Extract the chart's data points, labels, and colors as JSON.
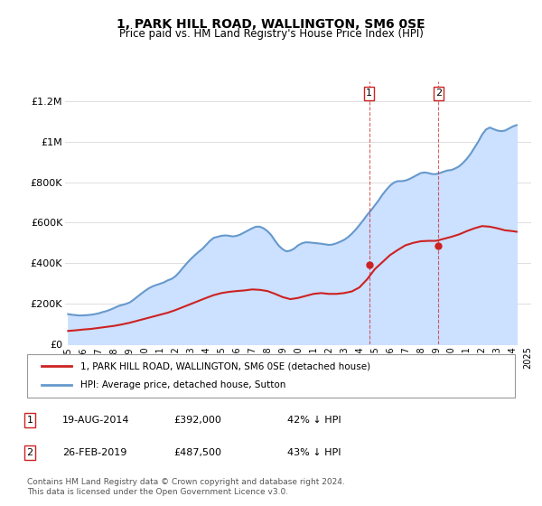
{
  "title": "1, PARK HILL ROAD, WALLINGTON, SM6 0SE",
  "subtitle": "Price paid vs. HM Land Registry's House Price Index (HPI)",
  "xlabel": "",
  "ylabel": "",
  "ylim": [
    0,
    1300000
  ],
  "yticks": [
    0,
    200000,
    400000,
    600000,
    800000,
    1000000,
    1200000
  ],
  "ytick_labels": [
    "£0",
    "£200K",
    "£400K",
    "£600K",
    "£800K",
    "£1M",
    "£1.2M"
  ],
  "background_color": "#ffffff",
  "plot_bg_color": "#ffffff",
  "grid_color": "#dddddd",
  "hpi_color": "#6699cc",
  "hpi_fill_color": "#cce0ff",
  "price_color": "#cc2222",
  "marker1_year": 2014.64,
  "marker2_year": 2019.16,
  "marker1_price": 392000,
  "marker2_price": 487500,
  "marker1_label": "1",
  "marker2_label": "2",
  "legend1_label": "1, PARK HILL ROAD, WALLINGTON, SM6 0SE (detached house)",
  "legend2_label": "HPI: Average price, detached house, Sutton",
  "table_rows": [
    {
      "num": "1",
      "date": "19-AUG-2014",
      "price": "£392,000",
      "hpi": "42% ↓ HPI"
    },
    {
      "num": "2",
      "date": "26-FEB-2019",
      "price": "£487,500",
      "hpi": "43% ↓ HPI"
    }
  ],
  "footer": "Contains HM Land Registry data © Crown copyright and database right 2024.\nThis data is licensed under the Open Government Licence v3.0.",
  "hpi_x": [
    1995.0,
    1995.25,
    1995.5,
    1995.75,
    1996.0,
    1996.25,
    1996.5,
    1996.75,
    1997.0,
    1997.25,
    1997.5,
    1997.75,
    1998.0,
    1998.25,
    1998.5,
    1998.75,
    1999.0,
    1999.25,
    1999.5,
    1999.75,
    2000.0,
    2000.25,
    2000.5,
    2000.75,
    2001.0,
    2001.25,
    2001.5,
    2001.75,
    2002.0,
    2002.25,
    2002.5,
    2002.75,
    2003.0,
    2003.25,
    2003.5,
    2003.75,
    2004.0,
    2004.25,
    2004.5,
    2004.75,
    2005.0,
    2005.25,
    2005.5,
    2005.75,
    2006.0,
    2006.25,
    2006.5,
    2006.75,
    2007.0,
    2007.25,
    2007.5,
    2007.75,
    2008.0,
    2008.25,
    2008.5,
    2008.75,
    2009.0,
    2009.25,
    2009.5,
    2009.75,
    2010.0,
    2010.25,
    2010.5,
    2010.75,
    2011.0,
    2011.25,
    2011.5,
    2011.75,
    2012.0,
    2012.25,
    2012.5,
    2012.75,
    2013.0,
    2013.25,
    2013.5,
    2013.75,
    2014.0,
    2014.25,
    2014.5,
    2014.75,
    2015.0,
    2015.25,
    2015.5,
    2015.75,
    2016.0,
    2016.25,
    2016.5,
    2016.75,
    2017.0,
    2017.25,
    2017.5,
    2017.75,
    2018.0,
    2018.25,
    2018.5,
    2018.75,
    2019.0,
    2019.25,
    2019.5,
    2019.75,
    2020.0,
    2020.25,
    2020.5,
    2020.75,
    2021.0,
    2021.25,
    2021.5,
    2021.75,
    2022.0,
    2022.25,
    2022.5,
    2022.75,
    2023.0,
    2023.25,
    2023.5,
    2023.75,
    2024.0,
    2024.25
  ],
  "hpi_y": [
    148000,
    145000,
    143000,
    141000,
    142000,
    143000,
    145000,
    148000,
    152000,
    158000,
    163000,
    170000,
    178000,
    187000,
    193000,
    198000,
    205000,
    218000,
    233000,
    248000,
    262000,
    275000,
    285000,
    292000,
    298000,
    305000,
    315000,
    322000,
    335000,
    355000,
    378000,
    400000,
    420000,
    438000,
    455000,
    470000,
    490000,
    510000,
    525000,
    530000,
    535000,
    537000,
    535000,
    532000,
    535000,
    542000,
    552000,
    562000,
    572000,
    580000,
    580000,
    572000,
    558000,
    538000,
    510000,
    485000,
    468000,
    458000,
    462000,
    472000,
    488000,
    498000,
    503000,
    502000,
    500000,
    498000,
    496000,
    493000,
    490000,
    492000,
    498000,
    506000,
    515000,
    528000,
    545000,
    565000,
    588000,
    612000,
    638000,
    660000,
    685000,
    710000,
    738000,
    762000,
    783000,
    798000,
    805000,
    805000,
    808000,
    815000,
    825000,
    835000,
    845000,
    848000,
    845000,
    840000,
    840000,
    845000,
    852000,
    858000,
    860000,
    868000,
    878000,
    895000,
    915000,
    940000,
    970000,
    1000000,
    1035000,
    1060000,
    1070000,
    1062000,
    1055000,
    1052000,
    1055000,
    1065000,
    1075000,
    1082000
  ],
  "price_x": [
    1995.0,
    1995.5,
    1996.0,
    1996.5,
    1997.0,
    1997.5,
    1998.0,
    1998.5,
    1999.0,
    1999.5,
    2000.0,
    2000.5,
    2001.0,
    2001.5,
    2002.0,
    2002.5,
    2003.0,
    2003.5,
    2004.0,
    2004.5,
    2005.0,
    2005.5,
    2006.0,
    2006.5,
    2007.0,
    2007.5,
    2008.0,
    2008.5,
    2009.0,
    2009.5,
    2010.0,
    2010.5,
    2011.0,
    2011.5,
    2012.0,
    2012.5,
    2013.0,
    2013.5,
    2014.0,
    2014.5,
    2015.0,
    2015.5,
    2016.0,
    2016.5,
    2017.0,
    2017.5,
    2018.0,
    2018.5,
    2019.0,
    2019.5,
    2020.0,
    2020.5,
    2021.0,
    2021.5,
    2022.0,
    2022.5,
    2023.0,
    2023.5,
    2024.0,
    2024.25
  ],
  "price_y": [
    65000,
    68000,
    72000,
    75000,
    80000,
    85000,
    90000,
    97000,
    105000,
    115000,
    125000,
    135000,
    145000,
    155000,
    168000,
    183000,
    198000,
    213000,
    228000,
    242000,
    252000,
    258000,
    262000,
    265000,
    270000,
    268000,
    262000,
    248000,
    232000,
    222000,
    228000,
    238000,
    248000,
    252000,
    248000,
    248000,
    252000,
    260000,
    280000,
    320000,
    370000,
    405000,
    440000,
    465000,
    488000,
    500000,
    508000,
    510000,
    510000,
    520000,
    530000,
    542000,
    558000,
    572000,
    583000,
    580000,
    572000,
    562000,
    558000,
    555000
  ],
  "xtick_years": [
    1995,
    1996,
    1997,
    1998,
    1999,
    2000,
    2001,
    2002,
    2003,
    2004,
    2005,
    2006,
    2007,
    2008,
    2009,
    2010,
    2011,
    2012,
    2013,
    2014,
    2015,
    2016,
    2017,
    2018,
    2019,
    2020,
    2021,
    2022,
    2023,
    2024,
    2025
  ]
}
